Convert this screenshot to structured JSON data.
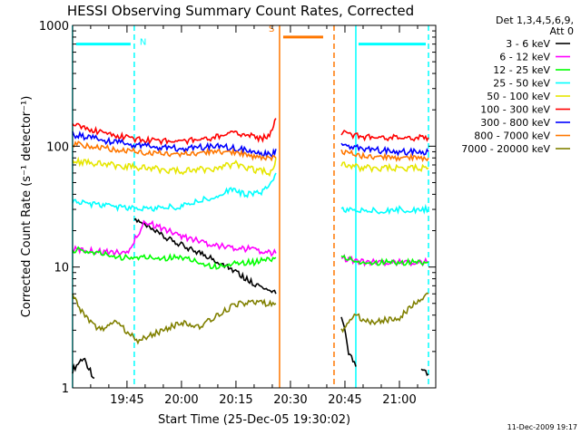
{
  "chart_data": {
    "type": "line",
    "title": "HESSI Observing Summary Count Rates, Corrected",
    "xlabel": "Start Time (25-Dec-05 19:30:02)",
    "ylabel": "Corrected Count Rate (s⁻¹ detector⁻¹)",
    "yscale": "log",
    "ylim": [
      1,
      1000
    ],
    "xlim": [
      "19:30:02",
      "21:10"
    ],
    "x_ticks": [
      "19:45",
      "20:00",
      "20:15",
      "20:30",
      "20:45",
      "21:00"
    ],
    "y_ticks": [
      "1",
      "10",
      "100",
      "1000"
    ],
    "grid": false,
    "legend_position": "right",
    "legend_header": [
      "Det 1,3,4,5,6,9,",
      "Att 0"
    ],
    "series": [
      {
        "name": "3 - 6 keV",
        "color": "#000000",
        "segments": [
          {
            "x": [
              "19:30",
              "19:33",
              "19:36"
            ],
            "y": [
              1.4,
              1.8,
              1.2
            ]
          },
          {
            "x": [
              "19:47",
              "19:52",
              "19:58",
              "20:03",
              "20:08",
              "20:13",
              "20:18",
              "20:23",
              "20:26"
            ],
            "y": [
              25,
              20,
              16,
              14,
              12,
              10,
              8,
              6.5,
              6
            ]
          },
          {
            "x": [
              "20:44",
              "20:46",
              "20:48"
            ],
            "y": [
              4,
              2,
              1.5
            ]
          },
          {
            "x": [
              "21:06",
              "21:08"
            ],
            "y": [
              1.5,
              1.3
            ]
          }
        ]
      },
      {
        "name": "6 - 12 keV",
        "color": "#ff00ff",
        "segments": [
          {
            "x": [
              "19:30",
              "19:45",
              "19:50",
              "20:00",
              "20:10",
              "20:20",
              "20:26"
            ],
            "y": [
              14,
              13,
              24,
              18,
              15,
              14,
              13
            ]
          },
          {
            "x": [
              "20:44",
              "20:50",
              "21:00",
              "21:08"
            ],
            "y": [
              12,
              11,
              11,
              11
            ]
          }
        ]
      },
      {
        "name": "12 - 25 keV",
        "color": "#00ff00",
        "segments": [
          {
            "x": [
              "19:30",
              "19:45",
              "20:00",
              "20:10",
              "20:15",
              "20:20",
              "20:26"
            ],
            "y": [
              14,
              12,
              12,
              10,
              11,
              11,
              12
            ]
          },
          {
            "x": [
              "20:44",
              "20:50",
              "21:00",
              "21:08"
            ],
            "y": [
              12,
              11,
              11,
              11
            ]
          }
        ]
      },
      {
        "name": "25 - 50 keV",
        "color": "#00ffff",
        "segments": [
          {
            "x": [
              "19:30",
              "19:40",
              "19:50",
              "20:00",
              "20:05",
              "20:10",
              "20:14",
              "20:17",
              "20:22",
              "20:25",
              "20:26"
            ],
            "y": [
              35,
              32,
              30,
              32,
              35,
              40,
              45,
              40,
              42,
              50,
              60
            ]
          },
          {
            "x": [
              "20:44",
              "20:50",
              "21:00",
              "21:08"
            ],
            "y": [
              30,
              29,
              30,
              30
            ]
          }
        ]
      },
      {
        "name": "50 - 100 keV",
        "color": "#e6e600",
        "segments": [
          {
            "x": [
              "19:30",
              "19:45",
              "20:00",
              "20:10",
              "20:15",
              "20:20",
              "20:25",
              "20:26"
            ],
            "y": [
              75,
              68,
              62,
              66,
              72,
              64,
              60,
              80
            ]
          },
          {
            "x": [
              "20:44",
              "20:50",
              "21:00",
              "21:08"
            ],
            "y": [
              70,
              66,
              66,
              66
            ]
          }
        ]
      },
      {
        "name": "100 - 300 keV",
        "color": "#ff0000",
        "segments": [
          {
            "x": [
              "19:30",
              "19:40",
              "19:50",
              "20:00",
              "20:10",
              "20:14",
              "20:18",
              "20:22",
              "20:25",
              "20:26"
            ],
            "y": [
              150,
              125,
              112,
              110,
              120,
              132,
              125,
              115,
              130,
              170
            ]
          },
          {
            "x": [
              "20:44",
              "20:50",
              "21:00",
              "21:08"
            ],
            "y": [
              130,
              120,
              118,
              118
            ]
          }
        ]
      },
      {
        "name": "300 - 800 keV",
        "color": "#0000ff",
        "segments": [
          {
            "x": [
              "19:30",
              "19:40",
              "19:50",
              "20:00",
              "20:10",
              "20:15",
              "20:20",
              "20:25",
              "20:26"
            ],
            "y": [
              125,
              110,
              100,
              96,
              100,
              96,
              90,
              85,
              95
            ]
          },
          {
            "x": [
              "20:44",
              "20:50",
              "21:00",
              "21:08"
            ],
            "y": [
              105,
              95,
              90,
              90
            ]
          }
        ]
      },
      {
        "name": "800 - 7000 keV",
        "color": "#ff7700",
        "segments": [
          {
            "x": [
              "19:30",
              "19:40",
              "19:50",
              "20:00",
              "20:10",
              "20:15",
              "20:20",
              "20:26"
            ],
            "y": [
              105,
              95,
              88,
              85,
              90,
              88,
              82,
              80
            ]
          },
          {
            "x": [
              "20:44",
              "20:50",
              "21:00",
              "21:08"
            ],
            "y": [
              90,
              82,
              80,
              80
            ]
          }
        ]
      },
      {
        "name": "7000 - 20000 keV",
        "color": "#808000",
        "segments": [
          {
            "x": [
              "19:30",
              "19:33",
              "19:37",
              "19:42",
              "19:48",
              "19:55",
              "20:00",
              "20:05",
              "20:10",
              "20:15",
              "20:20",
              "20:26"
            ],
            "y": [
              6,
              4,
              3,
              3.5,
              2.5,
              3,
              3.5,
              3.2,
              4,
              5,
              5,
              5
            ]
          },
          {
            "x": [
              "20:44",
              "20:48",
              "20:52",
              "21:00",
              "21:04",
              "21:08"
            ],
            "y": [
              3,
              4,
              3.5,
              3.8,
              5,
              6
            ]
          }
        ]
      }
    ],
    "annotations": [
      {
        "text": "N",
        "color": "#00ffff",
        "bar_start": "19:30",
        "bar_end": "19:47",
        "bar_y": 700,
        "line_x": "19:47"
      },
      {
        "text": "S",
        "color": "#ff7700",
        "bar_start": "20:27",
        "bar_end": "20:40",
        "bar_y": 800,
        "line_x": "20:27"
      }
    ],
    "night_marks": [
      {
        "x": "19:30",
        "color": "#00ffff",
        "style": "solid"
      },
      {
        "x": "19:47",
        "color": "#00ffff",
        "style": "dashed"
      },
      {
        "x": "20:27",
        "color": "#ff7700",
        "style": "solid"
      },
      {
        "x": "20:42",
        "color": "#ff7700",
        "style": "dashed"
      },
      {
        "x": "20:48",
        "color": "#00ffff",
        "style": "solid"
      },
      {
        "x": "21:08",
        "color": "#00ffff",
        "style": "dashed"
      }
    ],
    "cyan_bars": [
      {
        "start": "20:48",
        "end": "21:08",
        "y": 700,
        "color": "#00ffff"
      }
    ],
    "footer_timestamp": "11-Dec-2009 19:17"
  }
}
